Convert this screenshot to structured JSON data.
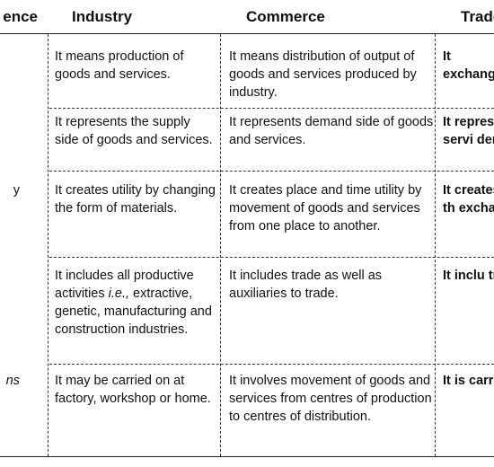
{
  "header": {
    "col0": "ence",
    "col1": "Industry",
    "col2": "Commerce",
    "col3": "Trade"
  },
  "rows": [
    {
      "industry": "It means production of goods and services.",
      "commerce": "It means distribution of output of goods and services produced by industry.",
      "trade": "It mean exchange"
    },
    {
      "industry": "It represents the supply side of goods and services.",
      "commerce": "It represents demand side of goods and services.",
      "trade": "It repres and servi demand."
    },
    {
      "left_fragment": "y",
      "industry": "It creates utility by changing the form of materials.",
      "commerce": "It creates place and time utility by movement of goods and services from one place to another.",
      "trade": "It creates utility th exchange"
    },
    {
      "industry_pre": "It includes all productive activities ",
      "industry_italic": "i.e.,",
      "industry_post": " extractive, genetic, manufacturing and construction industries.",
      "commerce": "It includes trade as well as auxiliaries to trade.",
      "trade": "It inclu trade."
    },
    {
      "left_fragment": "ns",
      "industry": "It may be carried on at factory, workshop or home.",
      "commerce": "It involves movement of goods and services from centres of production to centres of distribution.",
      "trade": "It is carri"
    }
  ]
}
